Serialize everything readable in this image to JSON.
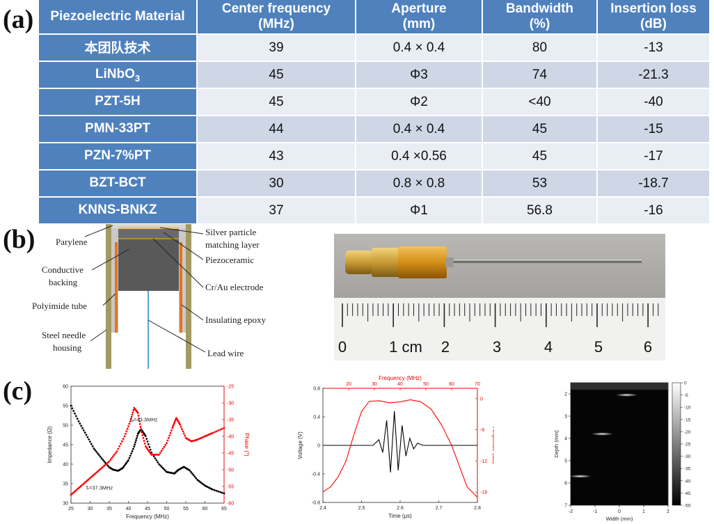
{
  "labels": {
    "a": "(a)",
    "b": "(b)",
    "c": "(c)"
  },
  "table": {
    "headers": [
      [
        "Piezoelectric Material"
      ],
      [
        "Center frequency",
        "(MHz)"
      ],
      [
        "Aperture",
        "(mm)"
      ],
      [
        "Bandwidth",
        "(%)"
      ],
      [
        "Insertion loss",
        "(dB)"
      ]
    ],
    "rows": [
      {
        "material": "本团队技术",
        "sub": "",
        "freq": "39",
        "aperture": "0.4 × 0.4",
        "bandwidth": "80",
        "loss": "-13"
      },
      {
        "material": "LiNbO",
        "sub": "3",
        "freq": "45",
        "aperture": "Φ3",
        "bandwidth": "74",
        "loss": "-21.3"
      },
      {
        "material": "PZT-5H",
        "sub": "",
        "freq": "45",
        "aperture": "Φ2",
        "bandwidth": "<40",
        "loss": "-40"
      },
      {
        "material": "PMN-33PT",
        "sub": "",
        "freq": "44",
        "aperture": "0.4 × 0.4",
        "bandwidth": "45",
        "loss": "-15"
      },
      {
        "material": "PZN-7%PT",
        "sub": "",
        "freq": "43",
        "aperture": "0.4 ×0.56",
        "bandwidth": "45",
        "loss": "-17"
      },
      {
        "material": "BZT-BCT",
        "sub": "",
        "freq": "30",
        "aperture": "0.8 × 0.8",
        "bandwidth": "53",
        "loss": "-18.7"
      },
      {
        "material": "KNNS-BNKZ",
        "sub": "",
        "freq": "37",
        "aperture": "Φ1",
        "bandwidth": "56.8",
        "loss": "-16"
      }
    ]
  },
  "diagram": {
    "left": [
      "Parylene",
      "Conductive",
      "backing",
      "Polyimide tube",
      "Steel needle",
      "housing"
    ],
    "right": [
      "Silver particle",
      "matching layer",
      "Piezoceramic",
      "Cr/Au electrode",
      "Insulating epoxy",
      "Lead wire"
    ]
  },
  "ruler": {
    "labels": [
      "0",
      "1 cm",
      "2",
      "3",
      "4",
      "5",
      "6"
    ]
  },
  "chart_data": [
    {
      "type": "line",
      "xlabel": "Frequency (MHz)",
      "ylabel": "Impedance (Ω)",
      "y2label": "Phase (°)",
      "xlim": [
        25,
        65
      ],
      "ylim": [
        30,
        60
      ],
      "y2lim": [
        -60,
        -25
      ],
      "xticks": [
        25,
        30,
        35,
        40,
        45,
        50,
        55,
        60,
        65
      ],
      "yticks": [
        30,
        35,
        40,
        45,
        50,
        55,
        60
      ],
      "y2ticks": [
        -60,
        -55,
        -50,
        -45,
        -40,
        -35,
        -30,
        -25
      ],
      "annotations": [
        "fₐ=43.3MHz",
        "fᵣ=37.3MHz"
      ],
      "series": [
        {
          "axis": "y",
          "color": "#000000",
          "x": [
            25,
            27,
            29,
            31,
            33,
            35,
            36,
            37.3,
            38.5,
            40,
            41.5,
            42.5,
            43.3,
            44.5,
            46,
            48,
            50,
            52,
            53,
            54.5,
            56,
            58,
            60,
            62,
            65
          ],
          "values": [
            55,
            51,
            47.5,
            44,
            41.5,
            39.2,
            38.6,
            38.3,
            39,
            41,
            44.5,
            47.8,
            49,
            47.2,
            43,
            40,
            38,
            37.6,
            38.5,
            39.3,
            38.4,
            36,
            34.5,
            33.5,
            32.5
          ]
        },
        {
          "axis": "y2",
          "color": "#FF0000",
          "x": [
            25,
            27,
            29,
            31,
            33,
            35,
            37,
            39,
            40.5,
            41.5,
            42.5,
            43.3,
            44.5,
            46,
            48,
            50,
            51.5,
            52.5,
            53.5,
            55,
            56.5,
            58,
            60,
            62,
            65
          ],
          "values": [
            -57.5,
            -55.5,
            -53.5,
            -51.5,
            -49.5,
            -47.5,
            -44.5,
            -40,
            -35.5,
            -31.5,
            -33,
            -38,
            -43,
            -45.5,
            -45.5,
            -42,
            -37.5,
            -34.5,
            -36.5,
            -40.5,
            -41.5,
            -41,
            -40,
            -39,
            -37.5
          ]
        }
      ]
    },
    {
      "type": "line",
      "xlabel": "Time (μs)",
      "ylabel": "Voltage (V)",
      "x2label": "Frequency (MHz)",
      "y2label": "Amplitude (dB)",
      "xlim": [
        2.4,
        2.8
      ],
      "ylim": [
        -0.8,
        0.8
      ],
      "x2lim": [
        10,
        70
      ],
      "y2lim": [
        -20,
        2
      ],
      "xticks": [
        2.4,
        2.5,
        2.6,
        2.7,
        2.8
      ],
      "yticks": [
        -0.8,
        -0.4,
        0.0,
        0.4,
        0.8
      ],
      "x2ticks": [
        20,
        30,
        40,
        50,
        60,
        70
      ],
      "y2ticks": [
        -18,
        -12,
        -6,
        0
      ],
      "series": [
        {
          "axis": "primary",
          "color": "#000000",
          "x": [
            2.4,
            2.53,
            2.545,
            2.555,
            2.565,
            2.575,
            2.585,
            2.595,
            2.605,
            2.615,
            2.625,
            2.635,
            2.645,
            2.66,
            2.8
          ],
          "values": [
            0,
            0,
            0.08,
            -0.1,
            0.35,
            -0.38,
            0.48,
            -0.35,
            0.28,
            -0.15,
            0.1,
            -0.05,
            0.03,
            0,
            0
          ]
        },
        {
          "axis": "secondary",
          "color": "#FF0000",
          "x": [
            10,
            13,
            16,
            19,
            22,
            25,
            28,
            32,
            36,
            40,
            44,
            48,
            52,
            56,
            60,
            63,
            66,
            70
          ],
          "values": [
            -18,
            -17,
            -15,
            -12,
            -7,
            -2.5,
            -0.5,
            -0.4,
            -0.8,
            -0.6,
            -0.2,
            -0.6,
            -2,
            -5,
            -9,
            -13,
            -17,
            -19
          ]
        }
      ]
    },
    {
      "type": "heatmap",
      "xlabel": "Width (mm)",
      "ylabel": "Depth (mm)",
      "xlim": [
        -2,
        2
      ],
      "ylim": [
        1.5,
        7
      ],
      "xticks": [
        -2,
        -1,
        0,
        1,
        2
      ],
      "yticks": [
        2,
        3,
        4,
        5,
        6,
        7
      ],
      "colorbar": [
        0,
        -5,
        -10,
        -15,
        -20,
        -25,
        -30,
        -35,
        -40,
        -45,
        -50
      ],
      "targets": [
        {
          "x": 0.3,
          "y": 2.05
        },
        {
          "x": -0.7,
          "y": 3.8
        },
        {
          "x": -1.6,
          "y": 5.7
        }
      ]
    }
  ]
}
